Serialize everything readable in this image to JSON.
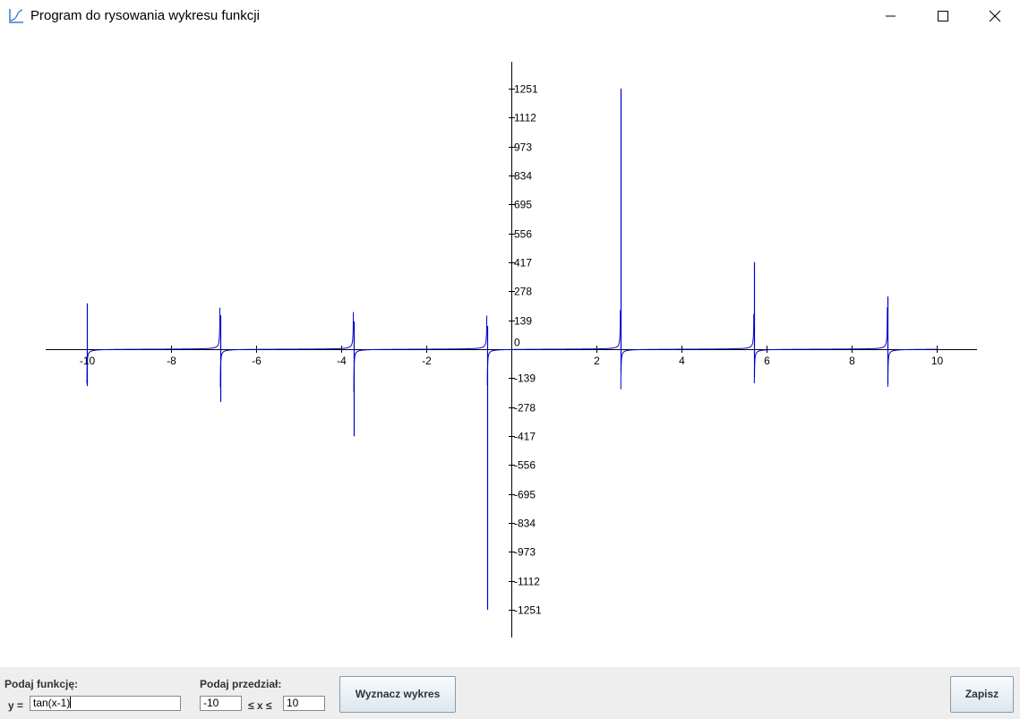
{
  "window": {
    "title": "Program do rysowania wykresu funkcji",
    "controls": [
      "minimize-icon",
      "maximize-icon",
      "close-icon"
    ]
  },
  "chart_data": {
    "type": "line",
    "function": "tan(x-1)",
    "xlim": [
      -10,
      10
    ],
    "ylim": [
      -1251,
      1251
    ],
    "x_ticks": [
      -10,
      -8,
      -6,
      -4,
      -2,
      2,
      4,
      6,
      8,
      10
    ],
    "y_ticks": [
      1251,
      1112,
      973,
      834,
      695,
      556,
      417,
      278,
      139,
      0,
      -139,
      -278,
      -417,
      -556,
      -695,
      -834,
      -973,
      -1112,
      -1251
    ],
    "line_color": "#0000cc",
    "grid": false,
    "spikes": [
      {
        "x": -9.99,
        "y_max": 220,
        "y_min": -177
      },
      {
        "x": -6.85,
        "y_max": 163,
        "y_min": -253
      },
      {
        "x": -3.71,
        "y_max": 134,
        "y_min": -418
      },
      {
        "x": -0.57,
        "y_max": 112,
        "y_min": -1251
      },
      {
        "x": 2.57,
        "y_max": 1251,
        "y_min": -112
      },
      {
        "x": 5.71,
        "y_max": 418,
        "y_min": -134
      },
      {
        "x": 8.85,
        "y_max": 253,
        "y_min": -163
      }
    ]
  },
  "panel": {
    "function_label": "Podaj funkcję:",
    "y_label": "y =",
    "function_value": "tan(x-1)",
    "range_label": "Podaj przedział:",
    "range_from": "-10",
    "range_sep": "≤ x ≤",
    "range_to": "10",
    "plot_button": "Wyznacz wykres",
    "save_button": "Zapisz"
  }
}
